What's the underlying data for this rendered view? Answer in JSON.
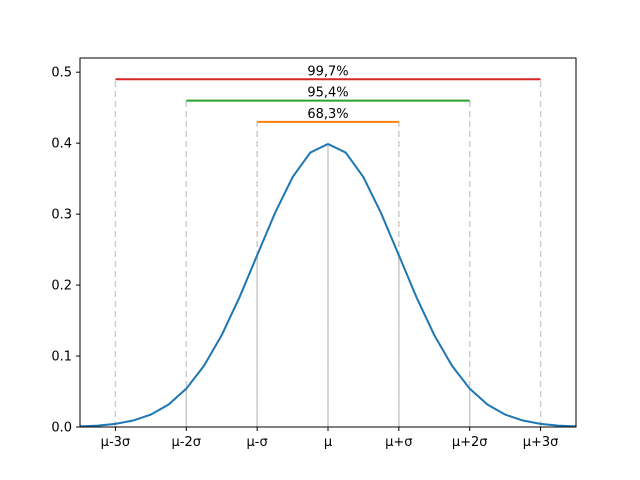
{
  "chart_data": {
    "type": "line",
    "title": "",
    "xlabel": "",
    "ylabel": "",
    "xlim": [
      -3.5,
      3.5
    ],
    "ylim": [
      0,
      0.52
    ],
    "grid": false,
    "y_ticks": [
      0.0,
      0.1,
      0.2,
      0.3,
      0.4,
      0.5
    ],
    "y_tick_labels": [
      "0.0",
      "0.1",
      "0.2",
      "0.3",
      "0.4",
      "0.5"
    ],
    "x_ticks": [
      -3,
      -2,
      -1,
      0,
      1,
      2,
      3
    ],
    "x_tick_labels": [
      "μ-3σ",
      "μ-2σ",
      "μ-σ",
      "μ",
      "μ+σ",
      "μ+2σ",
      "μ+3σ"
    ],
    "series": [
      {
        "color": "#1f77b4",
        "x": [
          -3.5,
          -3.25,
          -3.0,
          -2.75,
          -2.5,
          -2.25,
          -2.0,
          -1.75,
          -1.5,
          -1.25,
          -1.0,
          -0.75,
          -0.5,
          -0.25,
          0.0,
          0.25,
          0.5,
          0.75,
          1.0,
          1.25,
          1.5,
          1.75,
          2.0,
          2.25,
          2.5,
          2.75,
          3.0,
          3.25,
          3.5
        ],
        "y": [
          0.0009,
          0.002,
          0.0044,
          0.0091,
          0.0175,
          0.0317,
          0.054,
          0.0863,
          0.1295,
          0.1826,
          0.242,
          0.3011,
          0.3521,
          0.3867,
          0.3989,
          0.3867,
          0.3521,
          0.3011,
          0.242,
          0.1826,
          0.1295,
          0.0863,
          0.054,
          0.0317,
          0.0175,
          0.0091,
          0.0044,
          0.002,
          0.0009
        ]
      }
    ],
    "vertical_lines": {
      "x": [
        -3,
        -2,
        -1,
        0,
        1,
        2,
        3
      ],
      "style": "dashed",
      "color": "#cccccc"
    },
    "spans": [
      {
        "label": "68,3%",
        "from": -1,
        "to": 1,
        "y": 0.43,
        "color": "#ff7f0e"
      },
      {
        "label": "95,4%",
        "from": -2,
        "to": 2,
        "y": 0.46,
        "color": "#2ca02c"
      },
      {
        "label": "99,7%",
        "from": -3,
        "to": 3,
        "y": 0.49,
        "color": "#d62728"
      }
    ]
  }
}
